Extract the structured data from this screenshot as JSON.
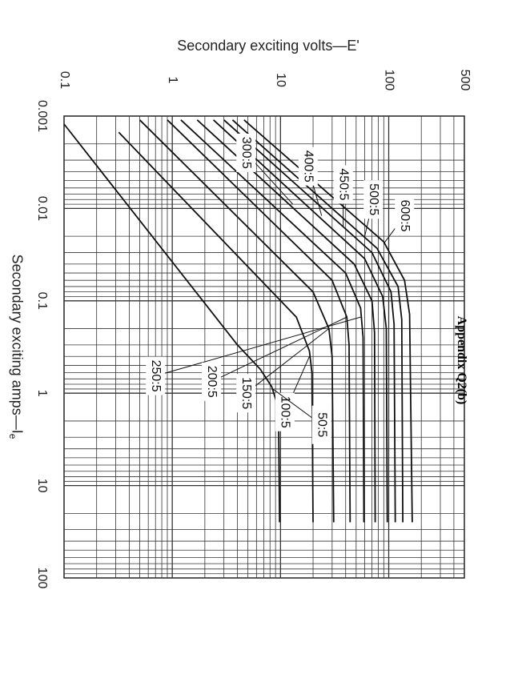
{
  "appendix_label": "Appendix Q2(b)",
  "chart_data": {
    "type": "line",
    "title": "",
    "xlabel": "Secondary exciting amps—I",
    "xlabel_subscript": "e",
    "ylabel": "Secondary exciting volts—E'",
    "x_scale": "log",
    "y_scale": "log",
    "xlim": [
      0.001,
      100
    ],
    "ylim": [
      0.1,
      500
    ],
    "x_ticks": [
      {
        "value": 0.001,
        "label": "0.001"
      },
      {
        "value": 0.01,
        "label": "0.01"
      },
      {
        "value": 0.1,
        "label": "0.1"
      },
      {
        "value": 1,
        "label": "1"
      },
      {
        "value": 10,
        "label": "10"
      },
      {
        "value": 100,
        "label": "100"
      }
    ],
    "y_ticks": [
      {
        "value": 0.1,
        "label": "0.1"
      },
      {
        "value": 1,
        "label": "1"
      },
      {
        "value": 10,
        "label": "10"
      },
      {
        "value": 100,
        "label": "100"
      },
      {
        "value": 500,
        "label": "500"
      }
    ],
    "grid": true,
    "orientation": "rotated 90° clockwise on page",
    "series": [
      {
        "name": "50:5",
        "points": [
          [
            0.00122,
            0.1
          ],
          [
            0.3,
            4
          ],
          [
            0.55,
            6.5
          ],
          [
            0.85,
            8.3
          ],
          [
            1.3,
            9.3
          ],
          [
            2.0,
            9.6
          ],
          [
            25,
            9.8
          ]
        ]
      },
      {
        "name": "100:5",
        "points": [
          [
            0.0015,
            0.32
          ],
          [
            0.15,
            14
          ],
          [
            0.35,
            18.5
          ],
          [
            0.6,
            19.5
          ],
          [
            25,
            20
          ]
        ]
      },
      {
        "name": "150:5",
        "points": [
          [
            0.0011,
            0.5
          ],
          [
            0.08,
            20
          ],
          [
            0.2,
            28
          ],
          [
            0.4,
            30
          ],
          [
            25,
            31
          ]
        ]
      },
      {
        "name": "200:5",
        "points": [
          [
            0.0011,
            0.9
          ],
          [
            0.06,
            30
          ],
          [
            0.15,
            41
          ],
          [
            0.3,
            43
          ],
          [
            25,
            44
          ]
        ]
      },
      {
        "name": "250:5",
        "points": [
          [
            0.0011,
            1.2
          ],
          [
            0.05,
            40
          ],
          [
            0.12,
            55
          ],
          [
            0.25,
            58
          ],
          [
            25,
            59
          ]
        ]
      },
      {
        "name": "300:5",
        "points": [
          [
            0.0011,
            1.7
          ],
          [
            0.04,
            48
          ],
          [
            0.1,
            70
          ],
          [
            0.22,
            74
          ],
          [
            25,
            75
          ]
        ]
      },
      {
        "name": "400:5",
        "points": [
          [
            0.0011,
            2.4
          ],
          [
            0.035,
            60
          ],
          [
            0.09,
            88
          ],
          [
            0.2,
            95
          ],
          [
            25,
            97
          ]
        ]
      },
      {
        "name": "450:5",
        "points": [
          [
            0.0011,
            3.0
          ],
          [
            0.03,
            70
          ],
          [
            0.08,
            105
          ],
          [
            0.18,
            112
          ],
          [
            25,
            115
          ]
        ]
      },
      {
        "name": "500:5",
        "points": [
          [
            0.0011,
            3.6
          ],
          [
            0.027,
            78
          ],
          [
            0.07,
            122
          ],
          [
            0.16,
            132
          ],
          [
            25,
            135
          ]
        ]
      },
      {
        "name": "600:5",
        "points": [
          [
            0.0011,
            4.6
          ],
          [
            0.023,
            90
          ],
          [
            0.06,
            140
          ],
          [
            0.14,
            156
          ],
          [
            25,
            165
          ]
        ]
      }
    ],
    "annotations": [
      {
        "label": "600:5",
        "series": "600:5",
        "at": [
          0.012,
          140
        ],
        "target": [
          0.024,
          90
        ]
      },
      {
        "label": "500:5",
        "series": "500:5",
        "at": [
          0.008,
          72
        ],
        "target": [
          0.02,
          60
        ]
      },
      {
        "label": "450:5",
        "series": "450:5",
        "at": [
          0.0055,
          38
        ],
        "target": [
          0.016,
          38
        ]
      },
      {
        "label": "400:5",
        "series": "400:5",
        "at": [
          0.0035,
          18
        ],
        "target": [
          0.012,
          24
        ]
      },
      {
        "label": "300:5",
        "series": "300:5",
        "at": [
          0.0025,
          4.8
        ],
        "target": [
          0.009,
          13
        ]
      },
      {
        "label": "250:5",
        "series": "250:5",
        "at": [
          0.65,
          0.7
        ],
        "target": [
          0.15,
          55
        ]
      },
      {
        "label": "200:5",
        "series": "200:5",
        "at": [
          0.75,
          2.3
        ],
        "target": [
          0.15,
          41
        ]
      },
      {
        "label": "150:5",
        "series": "150:5",
        "at": [
          1.0,
          4.8
        ],
        "target": [
          0.2,
          28
        ]
      },
      {
        "label": "100:5",
        "series": "100:5",
        "at": [
          1.6,
          11
        ],
        "target": [
          0.4,
          18.5
        ]
      },
      {
        "label": "50:5",
        "series": "50:5",
        "at": [
          2.2,
          24
        ],
        "target": [
          0.9,
          8.5
        ]
      }
    ]
  }
}
